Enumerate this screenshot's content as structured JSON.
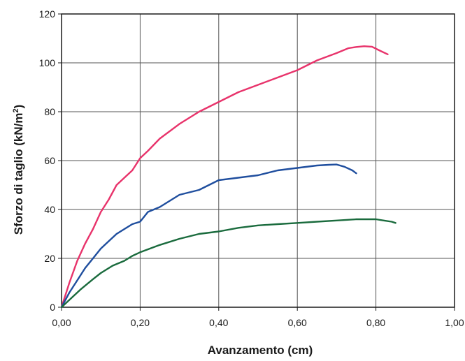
{
  "chart_data": {
    "type": "line",
    "xlabel": "Avanzamento (cm)",
    "ylabel_main": "Sforzo di taglio (kN/m",
    "ylabel_sup": "2",
    "ylabel_end": ")",
    "xlim": [
      0,
      1
    ],
    "ylim": [
      0,
      120
    ],
    "xticks": [
      0,
      0.2,
      0.4,
      0.6,
      0.8,
      1.0
    ],
    "xtick_labels": [
      "0,00",
      "0,20",
      "0,40",
      "0,60",
      "0,80",
      "1,00"
    ],
    "yticks": [
      0,
      20,
      40,
      60,
      80,
      100,
      120
    ],
    "ytick_labels": [
      "0",
      "20",
      "40",
      "60",
      "80",
      "100",
      "120"
    ],
    "grid": true,
    "series": [
      {
        "color": "#e8336b",
        "x": [
          0,
          0.02,
          0.04,
          0.06,
          0.08,
          0.1,
          0.12,
          0.14,
          0.16,
          0.18,
          0.2,
          0.22,
          0.25,
          0.3,
          0.35,
          0.4,
          0.45,
          0.5,
          0.55,
          0.6,
          0.65,
          0.7,
          0.73,
          0.75,
          0.77,
          0.79,
          0.81,
          0.83
        ],
        "y": [
          0,
          10,
          19,
          26,
          32,
          39,
          44,
          50,
          53,
          56,
          61,
          64,
          69,
          75,
          80,
          84,
          88,
          91,
          94,
          97,
          101,
          104,
          106,
          106.5,
          106.8,
          106.6,
          105,
          103.5
        ]
      },
      {
        "color": "#1f4e9e",
        "x": [
          0,
          0.02,
          0.04,
          0.06,
          0.08,
          0.1,
          0.12,
          0.14,
          0.16,
          0.18,
          0.2,
          0.22,
          0.25,
          0.3,
          0.35,
          0.4,
          0.45,
          0.5,
          0.55,
          0.6,
          0.65,
          0.68,
          0.7,
          0.72,
          0.74,
          0.75
        ],
        "y": [
          0,
          6,
          11,
          16,
          20,
          24,
          27,
          30,
          32,
          34,
          35,
          39,
          41,
          46,
          48,
          52,
          53,
          54,
          56,
          57,
          58,
          58.3,
          58.4,
          57.5,
          56,
          54.8
        ]
      },
      {
        "color": "#1a6b3d",
        "x": [
          0,
          0.02,
          0.05,
          0.08,
          0.1,
          0.13,
          0.16,
          0.18,
          0.2,
          0.25,
          0.3,
          0.35,
          0.4,
          0.45,
          0.5,
          0.55,
          0.6,
          0.65,
          0.7,
          0.75,
          0.8,
          0.82,
          0.84,
          0.85
        ],
        "y": [
          0,
          3,
          7.5,
          11.5,
          14,
          17,
          19,
          21,
          22.5,
          25.5,
          28,
          30,
          31,
          32.5,
          33.5,
          34,
          34.5,
          35,
          35.5,
          36,
          36,
          35.5,
          35,
          34.5
        ]
      }
    ]
  }
}
